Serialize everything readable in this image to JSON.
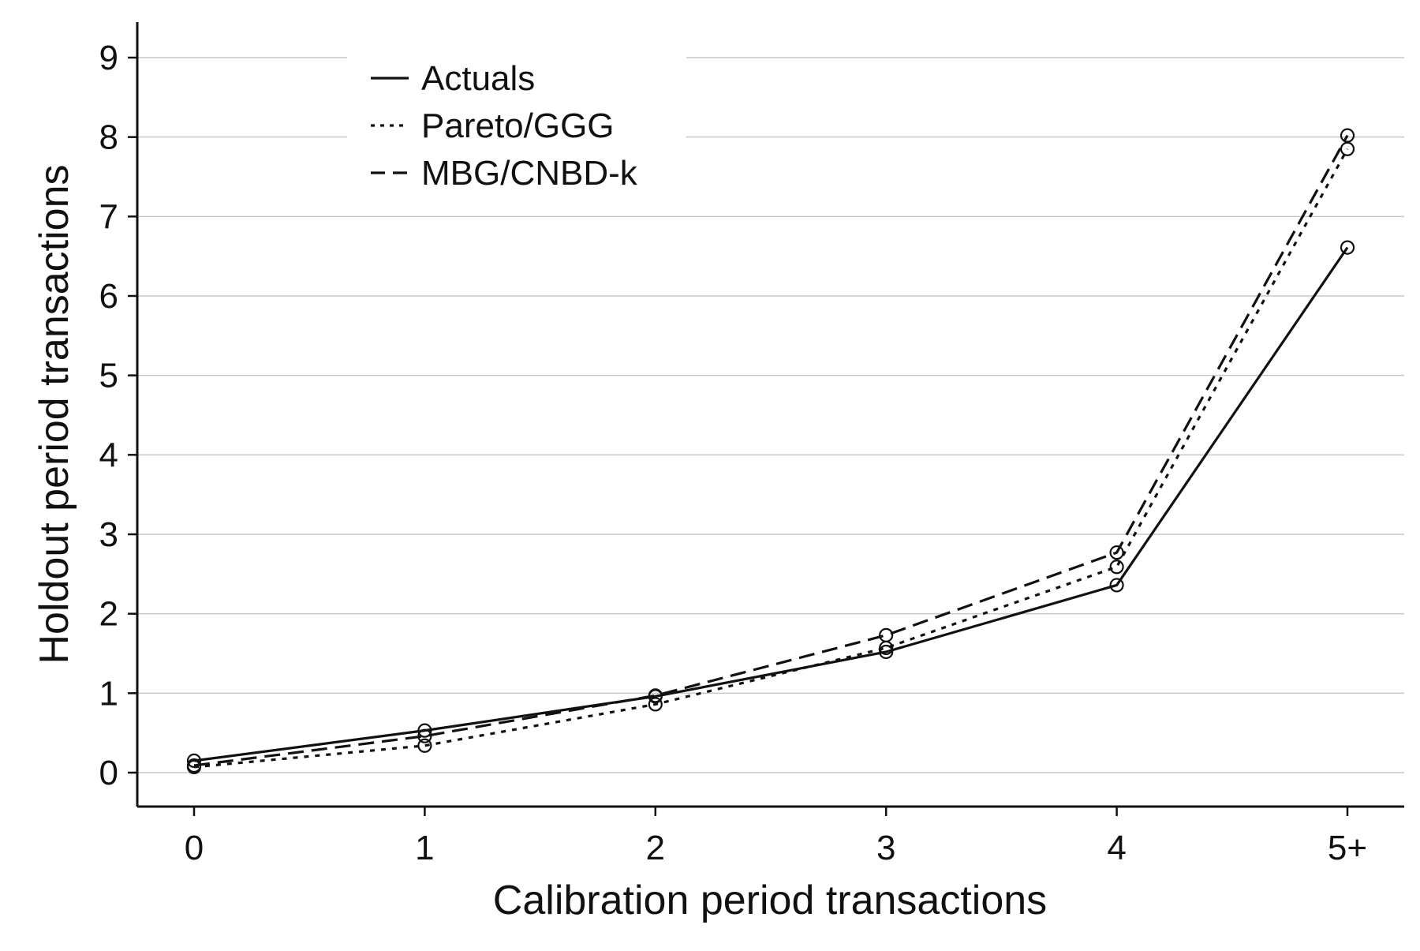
{
  "chart_data": {
    "type": "line",
    "title": "",
    "xlabel": "Calibration period transactions",
    "ylabel": "Holdout period transactions",
    "categories": [
      "0",
      "1",
      "2",
      "3",
      "4",
      "5+"
    ],
    "ylim": [
      -0.4,
      9.4
    ],
    "yticks": [
      0,
      1,
      2,
      3,
      4,
      5,
      6,
      7,
      8,
      9
    ],
    "grid": "horizontal",
    "legend_position": "top-left",
    "series": [
      {
        "name": "Actuals",
        "style": "solid",
        "values": [
          0.15,
          0.53,
          0.96,
          1.52,
          2.36,
          6.61
        ]
      },
      {
        "name": "Pareto/GGG",
        "style": "dotted",
        "values": [
          0.07,
          0.34,
          0.86,
          1.57,
          2.59,
          7.85
        ]
      },
      {
        "name": "MBG/CNBD-k",
        "style": "dashed",
        "values": [
          0.09,
          0.46,
          0.97,
          1.73,
          2.77,
          8.02
        ]
      }
    ],
    "colors": {
      "line": "#111111",
      "grid": "#c8c8c8",
      "axis": "#111111"
    }
  }
}
